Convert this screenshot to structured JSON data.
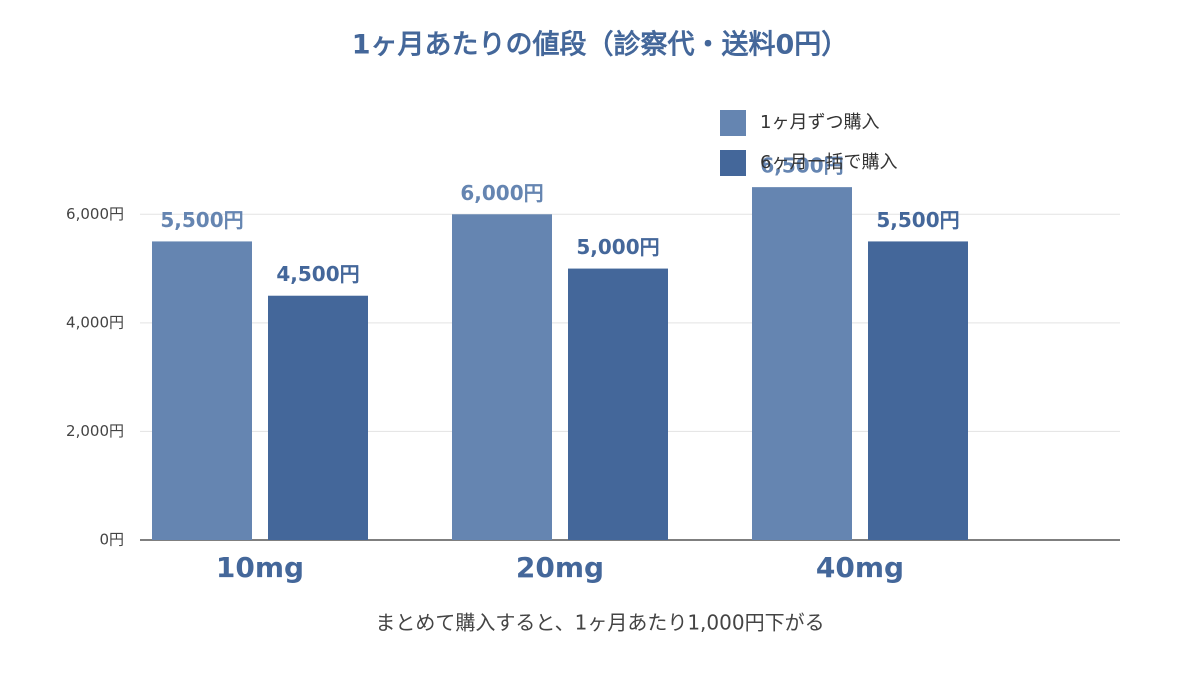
{
  "chart_data": {
    "type": "bar",
    "title": "1ヶ月あたりの値段（診察代・送料0円）",
    "xlabel": "まとめて購入すると、1ヶ月あたり1,000円下がる",
    "categories": [
      "10mg",
      "20mg",
      "40mg"
    ],
    "series": [
      {
        "name": "1ヶ月ずつ購入",
        "color": "#6585b1",
        "values": [
          5500,
          6000,
          6500
        ],
        "value_labels": [
          "5,500円",
          "6,000円",
          "6,500円"
        ]
      },
      {
        "name": "6ヶ月一括で購入",
        "color": "#44679a",
        "values": [
          4500,
          5000,
          5500
        ],
        "value_labels": [
          "4,500円",
          "5,000円",
          "5,500円"
        ]
      }
    ],
    "ylim": [
      0,
      7000
    ],
    "yticks": [
      {
        "value": 0,
        "label": "0円"
      },
      {
        "value": 2000,
        "label": "2,000円"
      },
      {
        "value": 4000,
        "label": "4,000円"
      },
      {
        "value": 6000,
        "label": "6,000円"
      }
    ],
    "grid": true
  }
}
